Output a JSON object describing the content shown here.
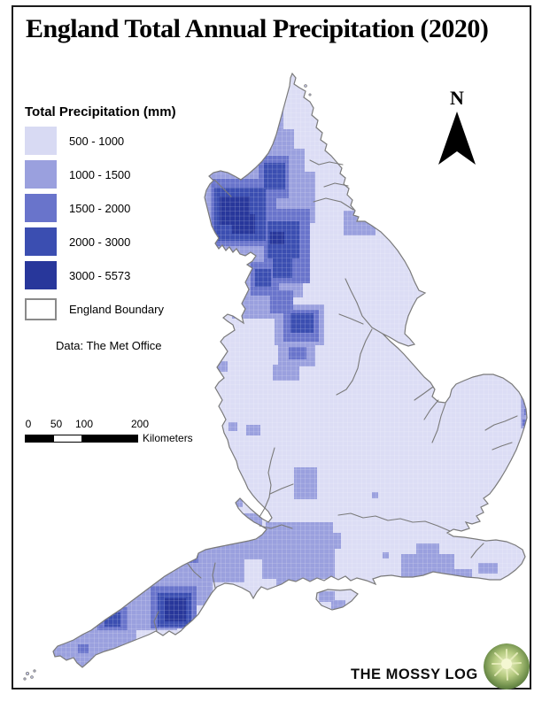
{
  "page": {
    "title": "England Total Annual Precipitation (2020)"
  },
  "legend": {
    "title": "Total Precipitation (mm)",
    "classes": [
      {
        "label": "500 - 1000",
        "color": "#d8daf3"
      },
      {
        "label": "1000 - 1500",
        "color": "#9aa0de"
      },
      {
        "label": "1500 - 2000",
        "color": "#6974cb"
      },
      {
        "label": "2000 - 3000",
        "color": "#3b4eb1"
      },
      {
        "label": "3000 - 5573",
        "color": "#28379b"
      }
    ],
    "boundary_label": "England Boundary",
    "boundary_color": "#ffffff",
    "credit": "Data: The Met Office"
  },
  "scale_bar": {
    "ticks": [
      "0",
      "50",
      "100",
      "200"
    ],
    "unit": "Kilometers"
  },
  "north_arrow": {
    "label": "N"
  },
  "footer": {
    "brand": "THE MOSSY LOG"
  },
  "map": {
    "land_color": "#dcddf5",
    "sea_color": "#ffffff",
    "boundary_color": "#7a7a7a",
    "grid_line_color": "#ffffff",
    "river_color": "#7a7a7a",
    "patches": {
      "class2": [
        [
          292,
          110,
          28,
          18
        ],
        [
          272,
          126,
          48,
          22
        ],
        [
          252,
          146,
          80,
          26
        ],
        [
          240,
          168,
          104,
          28
        ],
        [
          232,
          194,
          124,
          58
        ],
        [
          236,
          250,
          112,
          54
        ],
        [
          250,
          302,
          92,
          34
        ],
        [
          262,
          334,
          62,
          26
        ],
        [
          388,
          238,
          36,
          28
        ],
        [
          310,
          344,
          56,
          46
        ],
        [
          314,
          388,
          42,
          26
        ],
        [
          308,
          412,
          30,
          18
        ],
        [
          332,
          528,
          26,
          36
        ],
        [
          420,
          556,
          7,
          7
        ],
        [
          352,
          592,
          7,
          7
        ],
        [
          355,
          602,
          30,
          18
        ],
        [
          300,
          590,
          76,
          34
        ],
        [
          296,
          620,
          82,
          34
        ],
        [
          312,
          652,
          48,
          14
        ],
        [
          453,
          626,
          60,
          26
        ],
        [
          470,
          614,
          26,
          14
        ],
        [
          487,
          643,
          46,
          20
        ],
        [
          540,
          636,
          22,
          12
        ],
        [
          588,
          444,
          10,
          40
        ],
        [
          58,
          724,
          56,
          34
        ],
        [
          78,
          694,
          76,
          44
        ],
        [
          104,
          668,
          96,
          44
        ],
        [
          136,
          644,
          104,
          40
        ],
        [
          172,
          618,
          104,
          40
        ],
        [
          208,
          596,
          92,
          36
        ],
        [
          244,
          580,
          52,
          34
        ],
        [
          250,
          543,
          24,
          30
        ],
        [
          243,
          408,
          14,
          12
        ],
        [
          236,
          460,
          12,
          12
        ],
        [
          230,
          497,
          22,
          18
        ],
        [
          278,
          480,
          16,
          12
        ],
        [
          258,
          477,
          10,
          10
        ],
        [
          360,
          668,
          18,
          12
        ],
        [
          374,
          678,
          16,
          10
        ],
        [
          432,
          624,
          7,
          7
        ]
      ],
      "class3": [
        [
          280,
          138,
          26,
          32
        ],
        [
          292,
          176,
          34,
          48
        ],
        [
          238,
          202,
          74,
          76
        ],
        [
          298,
          236,
          52,
          84
        ],
        [
          283,
          296,
          32,
          38
        ],
        [
          305,
          328,
          26,
          26
        ],
        [
          320,
          350,
          40,
          36
        ],
        [
          326,
          392,
          20,
          14
        ],
        [
          182,
          610,
          42,
          26
        ],
        [
          170,
          662,
          52,
          48
        ],
        [
          110,
          686,
          34,
          26
        ],
        [
          88,
          728,
          12,
          10
        ],
        [
          591,
          450,
          7,
          7
        ],
        [
          592,
          462,
          7,
          7
        ],
        [
          590,
          474,
          7,
          7
        ]
      ],
      "class4": [
        [
          298,
          184,
          24,
          30
        ],
        [
          242,
          212,
          58,
          60
        ],
        [
          302,
          250,
          36,
          42
        ],
        [
          308,
          292,
          22,
          22
        ],
        [
          288,
          304,
          18,
          20
        ],
        [
          328,
          354,
          26,
          22
        ],
        [
          190,
          617,
          28,
          17
        ],
        [
          178,
          670,
          38,
          38
        ],
        [
          118,
          692,
          18,
          16
        ]
      ],
      "class5": [
        [
          248,
          222,
          34,
          32
        ],
        [
          262,
          242,
          26,
          22
        ],
        [
          305,
          262,
          16,
          14
        ],
        [
          186,
          676,
          24,
          26
        ],
        [
          196,
          620,
          12,
          8
        ]
      ]
    },
    "rivers": [
      "387,186 372,183 360,186 350,181",
      "393,210 378,207 366,211",
      "399,237 385,228 368,224 354,228",
      "432,377 420,370 409,357 403,342 396,328 390,315",
      "420,372 413,385 407,400 404,416 398,430 391,440 380,446",
      "489,437 478,445 468,452",
      "495,452 486,463 479,474",
      "503,456 498,470 494,486 488,500",
      "584,470 570,476 558,480 548,486",
      "578,500 566,504 556,508",
      "508,600 494,594 480,589 466,590 452,586 438,588 424,583 410,585 396,580 382,582",
      "546,614 538,622 532,630",
      "293,584 299,574 304,562 306,548 303,534 306,520 310,506",
      "305,558 318,552 331,547",
      "293,594 306,597 318,593 330,597",
      "243,664 240,650 243,636",
      "177,713 174,702 179,691",
      "212,637 219,646 227,653",
      "242,203 252,213 261,222",
      "410,366 396,360 383,355"
    ]
  }
}
